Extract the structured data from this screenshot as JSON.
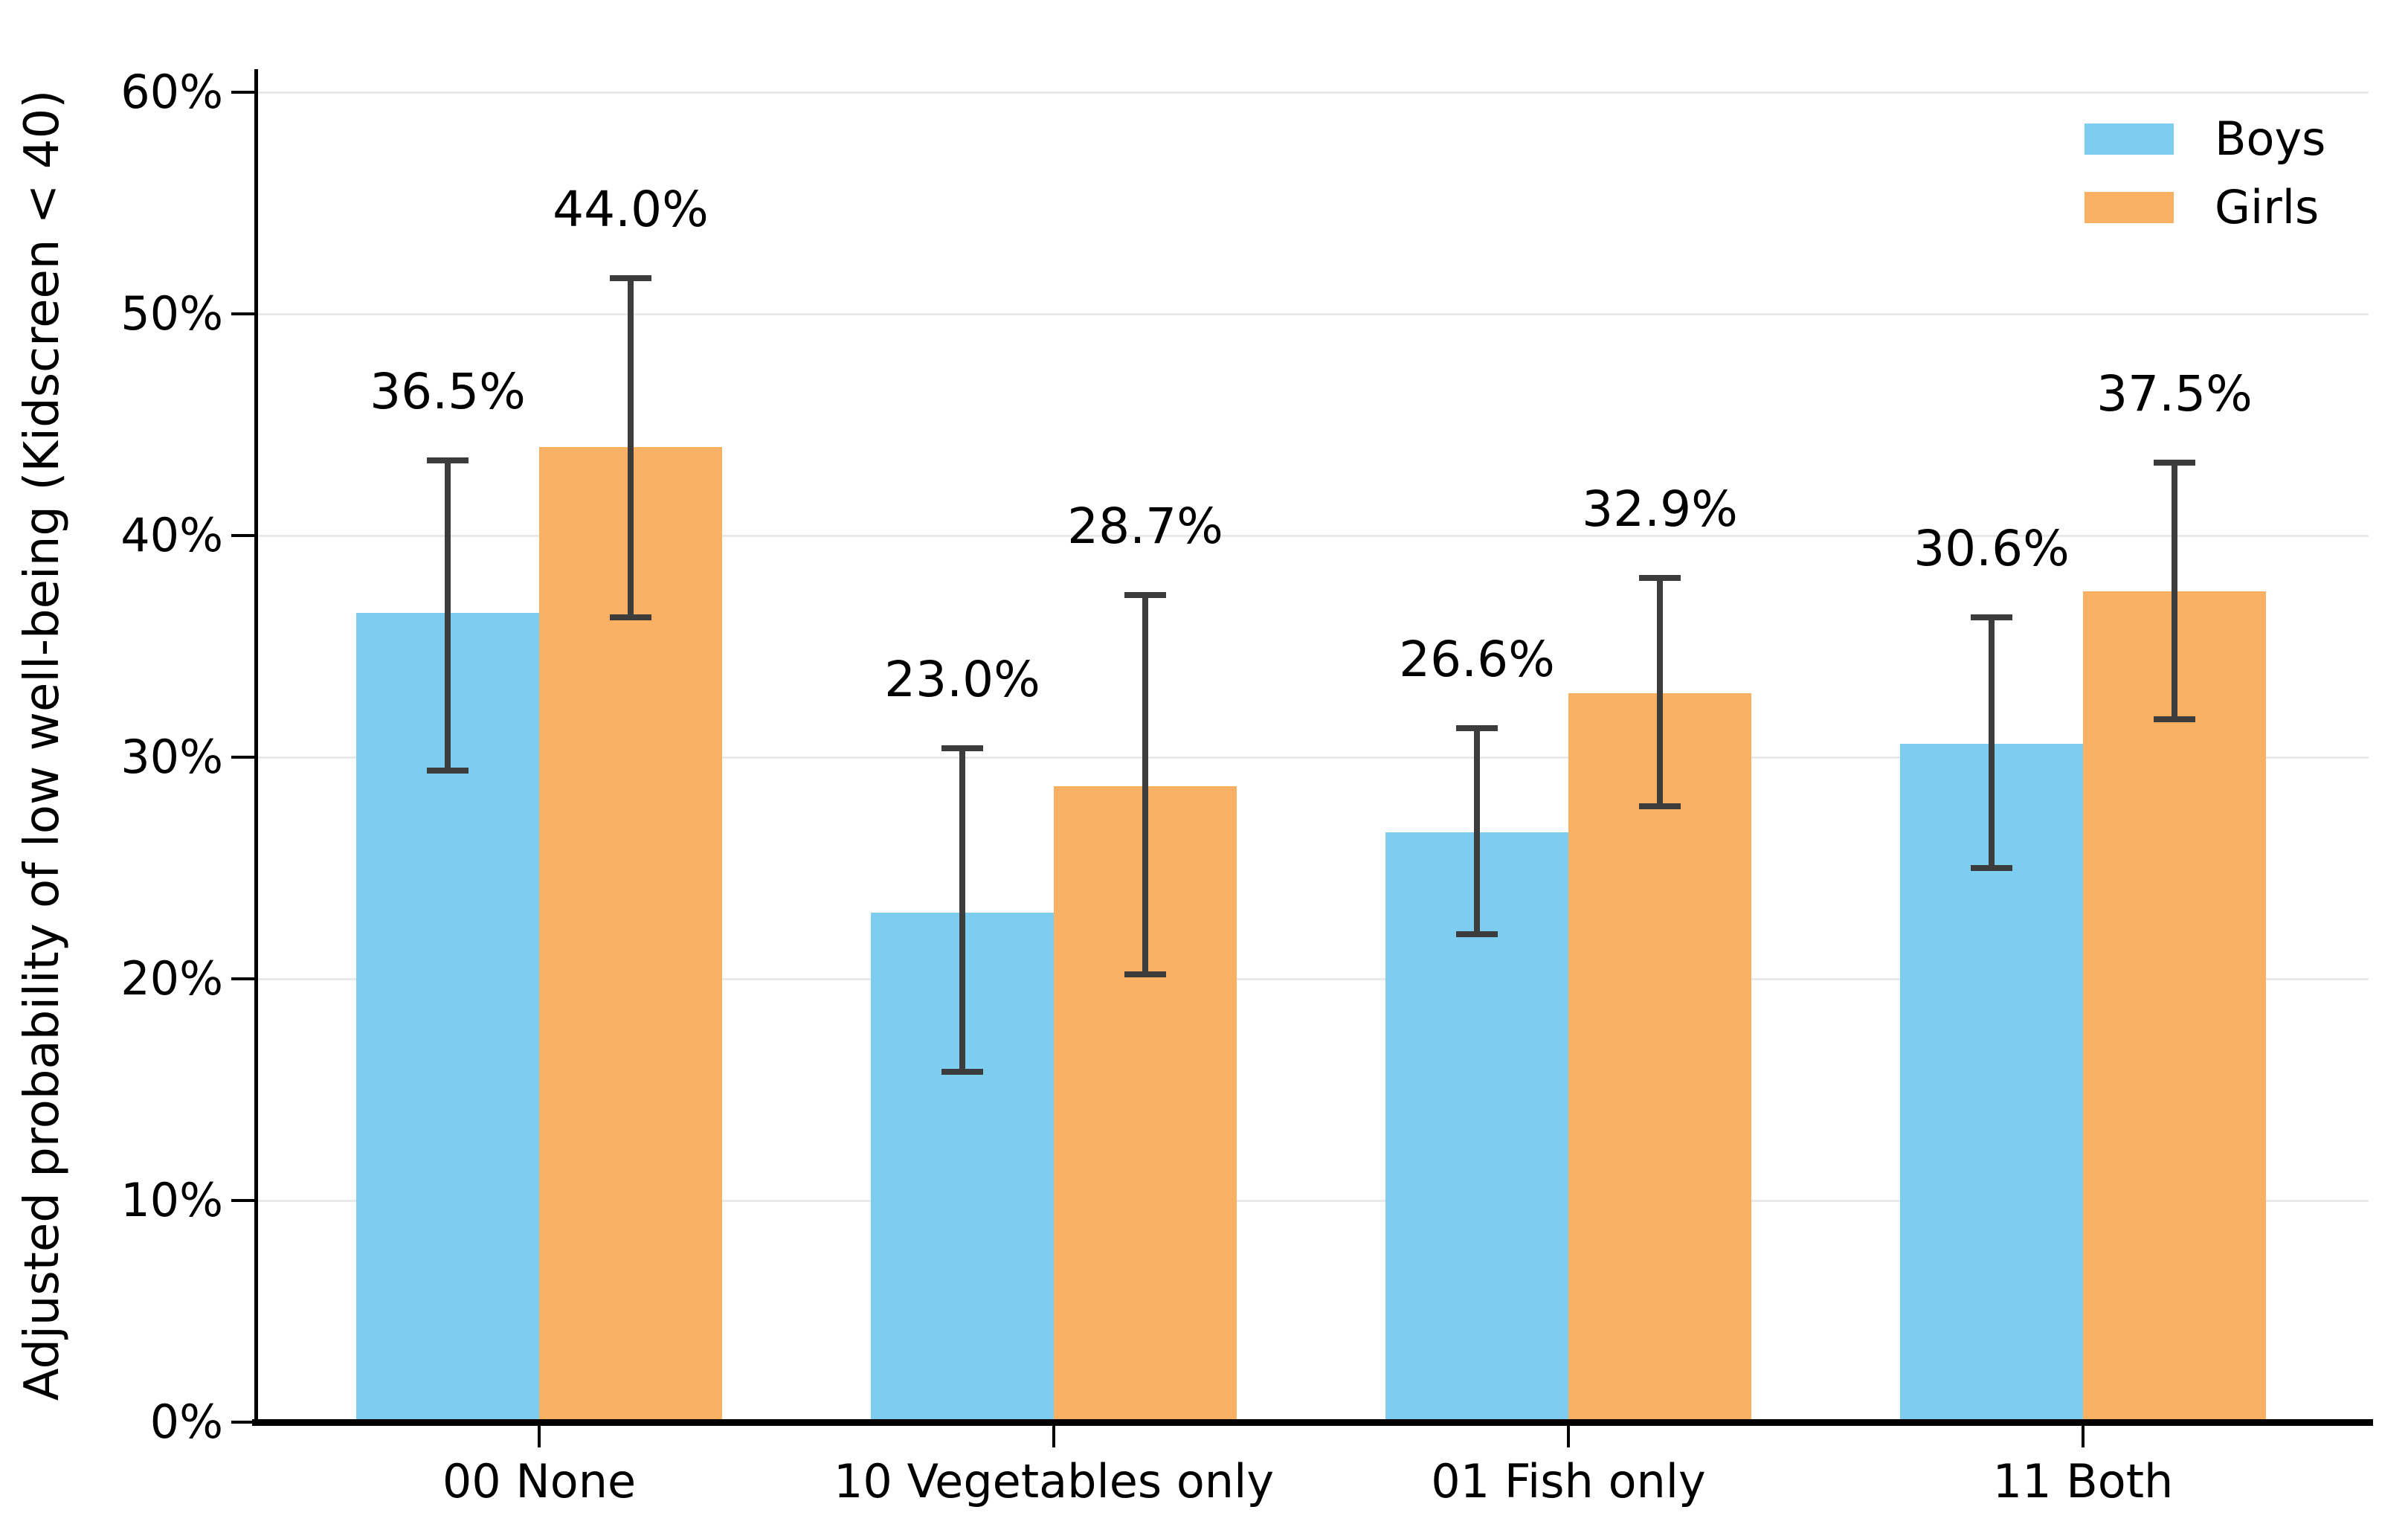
{
  "figure": {
    "background": "#ffffff",
    "text_color": "#000000"
  },
  "chart_data": {
    "type": "bar",
    "title": "",
    "ylabel": "Adjusted probability of low well-being (Kidscreen < 40)",
    "xlabel": "",
    "categories": [
      "00 None",
      "10 Vegetables only",
      "01 Fish only",
      "11 Both"
    ],
    "series": [
      {
        "name": "Boys",
        "color": "#7dcdf0",
        "values": [
          36.5,
          23.0,
          26.6,
          30.6
        ],
        "labels": [
          "36.5%",
          "23.0%",
          "26.6%",
          "30.6%"
        ],
        "error_low": [
          29.4,
          15.8,
          22.0,
          25.0
        ],
        "error_high": [
          43.4,
          30.4,
          31.3,
          36.3
        ]
      },
      {
        "name": "Girls",
        "color": "#fbb163",
        "values": [
          44.0,
          28.7,
          32.9,
          37.5
        ],
        "labels": [
          "44.0%",
          "28.7%",
          "32.9%",
          "37.5%"
        ],
        "error_low": [
          36.3,
          20.2,
          27.8,
          31.7
        ],
        "error_high": [
          51.6,
          37.3,
          38.1,
          43.3
        ]
      }
    ],
    "yticks": [
      "0%",
      "10%",
      "20%",
      "30%",
      "40%",
      "50%",
      "60%"
    ],
    "ytick_values": [
      0,
      10,
      20,
      30,
      40,
      50,
      60
    ],
    "ylim": [
      0,
      61
    ],
    "grid": true,
    "gridline_color": "#e9e9e9",
    "errorbar_color": "#3c3c3c",
    "legend_position": "upper right",
    "legend": [
      "Boys",
      "Girls"
    ]
  }
}
